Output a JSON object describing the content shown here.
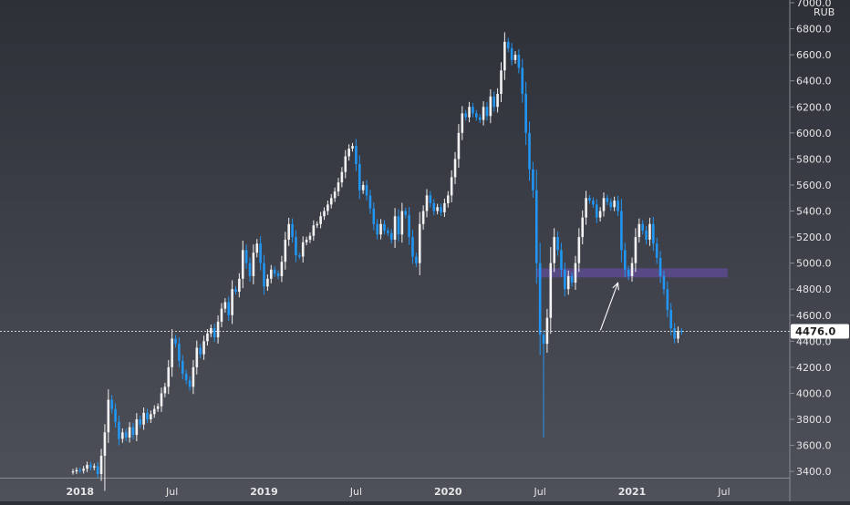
{
  "chart_data": {
    "type": "candlestick",
    "currency_label": "RUB",
    "last_price": 4476.0,
    "last_price_label": "4476.0",
    "ylim": [
      3380,
      7000
    ],
    "y_ticks": [
      {
        "value": 3400,
        "label": "3400.0"
      },
      {
        "value": 3600,
        "label": "3600.0"
      },
      {
        "value": 3800,
        "label": "3800.0"
      },
      {
        "value": 4000,
        "label": "4000.0"
      },
      {
        "value": 4200,
        "label": "4200.0"
      },
      {
        "value": 4400,
        "label": "4400.0"
      },
      {
        "value": 4600,
        "label": "4600.0"
      },
      {
        "value": 4800,
        "label": "4800.0"
      },
      {
        "value": 5000,
        "label": "5000.0"
      },
      {
        "value": 5200,
        "label": "5200.0"
      },
      {
        "value": 5400,
        "label": "5400.0"
      },
      {
        "value": 5600,
        "label": "5600.0"
      },
      {
        "value": 5800,
        "label": "5800.0"
      },
      {
        "value": 6000,
        "label": "6000.0"
      },
      {
        "value": 6200,
        "label": "6200.0"
      },
      {
        "value": 6400,
        "label": "6400.0"
      },
      {
        "value": 6600,
        "label": "6600.0"
      },
      {
        "value": 6800,
        "label": "6800.0"
      },
      {
        "value": 7000,
        "label": "7000.0"
      }
    ],
    "x_ticks": [
      {
        "label": "2018",
        "week": 2,
        "bold": true
      },
      {
        "label": "Jul",
        "week": 28,
        "bold": false
      },
      {
        "label": "2019",
        "week": 54,
        "bold": true
      },
      {
        "label": "Jul",
        "week": 80,
        "bold": false
      },
      {
        "label": "2020",
        "week": 106,
        "bold": true
      },
      {
        "label": "Jul",
        "week": 132,
        "bold": false
      },
      {
        "label": "2021",
        "week": 158,
        "bold": true
      },
      {
        "label": "Jul",
        "week": 184,
        "bold": false
      }
    ],
    "zone": {
      "low": 4890,
      "high": 4960,
      "week_start": 131,
      "week_end": 185
    },
    "projection": {
      "from_week": 147,
      "from_price": 4470,
      "to_week": 154,
      "to_price": 4890
    },
    "colors": {
      "up": "#f2f2f2",
      "down": "#2196f3",
      "zone": "#5b4a8e",
      "axis_text": "#e6e6e6",
      "price_line": "#cfcfcf"
    },
    "closes": [
      3400,
      3410,
      3405,
      3420,
      3450,
      3430,
      3440,
      3380,
      3520,
      3700,
      3950,
      3880,
      3780,
      3650,
      3700,
      3660,
      3740,
      3680,
      3800,
      3760,
      3850,
      3800,
      3840,
      3880,
      3900,
      4000,
      4050,
      4200,
      4420,
      4380,
      4250,
      4150,
      4100,
      4050,
      4200,
      4350,
      4300,
      4400,
      4460,
      4500,
      4430,
      4550,
      4650,
      4700,
      4600,
      4800,
      4780,
      4880,
      5100,
      5000,
      4900,
      5080,
      5150,
      5000,
      4820,
      4880,
      4950,
      4920,
      4900,
      5010,
      5180,
      5300,
      5200,
      5060,
      5050,
      5160,
      5180,
      5210,
      5290,
      5300,
      5360,
      5400,
      5450,
      5500,
      5550,
      5620,
      5700,
      5820,
      5880,
      5900,
      5760,
      5560,
      5600,
      5520,
      5420,
      5300,
      5220,
      5300,
      5250,
      5230,
      5180,
      5360,
      5220,
      5400,
      5370,
      5200,
      5050,
      5000,
      5300,
      5400,
      5520,
      5460,
      5400,
      5430,
      5390,
      5460,
      5520,
      5660,
      5800,
      6000,
      6150,
      6120,
      6200,
      6150,
      6120,
      6100,
      6200,
      6130,
      6280,
      6200,
      6300,
      6480,
      6700,
      6650,
      6560,
      6600,
      6500,
      6300,
      6000,
      5720,
      5560,
      5000,
      4450,
      4380,
      4580,
      5000,
      5200,
      5100,
      4950,
      4800,
      4900,
      4850,
      5000,
      5200,
      5350,
      5500,
      5480,
      5450,
      5350,
      5400,
      5500,
      5470,
      5430,
      5480,
      5400,
      5100,
      4950,
      4900,
      5000,
      5200,
      5300,
      5250,
      5180,
      5300,
      5150,
      5040,
      4900,
      4800,
      4640,
      4500,
      4420,
      4480,
      4470
    ]
  }
}
